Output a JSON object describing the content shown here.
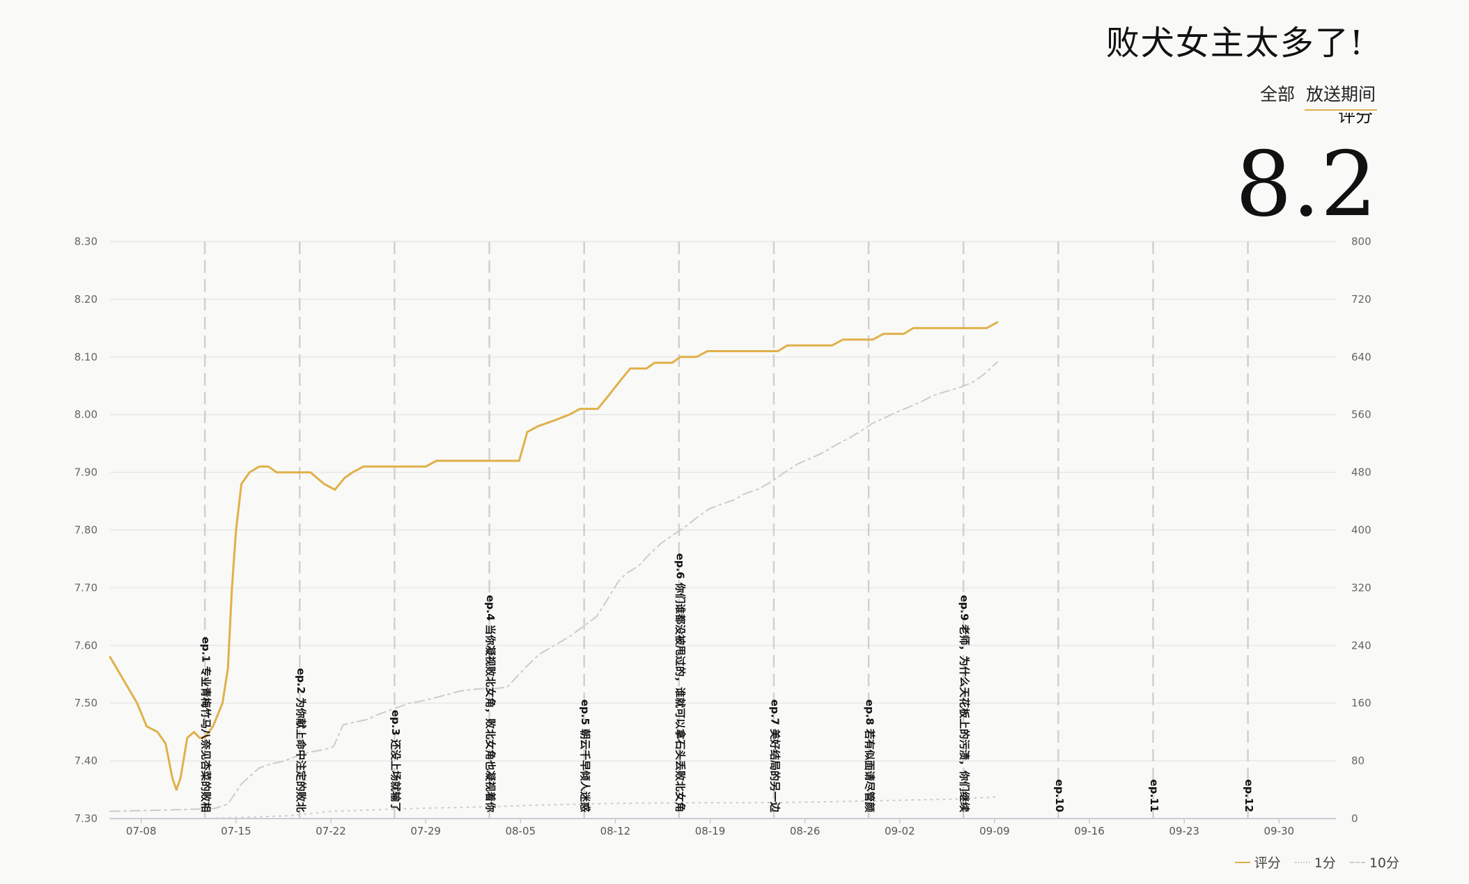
{
  "title": "败犬女主太多了!",
  "tabs": [
    {
      "label": "全部",
      "active": false
    },
    {
      "label": "放送期间",
      "active": true
    }
  ],
  "score": {
    "label": "评分",
    "value": "8.2"
  },
  "legend": [
    {
      "label": "评分",
      "color": "#e0b04a",
      "style": "solid"
    },
    {
      "label": "1分",
      "color": "#cccccc",
      "style": "dotted"
    },
    {
      "label": "10分",
      "color": "#cccccc",
      "style": "dashdot"
    }
  ],
  "chart_data": {
    "type": "line",
    "x_tick_labels": [
      "07-08",
      "07-15",
      "07-22",
      "07-29",
      "08-05",
      "08-12",
      "08-19",
      "08-26",
      "09-02",
      "09-09",
      "09-16",
      "09-23",
      "09-30"
    ],
    "y_left_ticks": [
      "8.30",
      "8.20",
      "8.10",
      "8.00",
      "7.90",
      "7.80",
      "7.70",
      "7.60",
      "7.50",
      "7.40",
      "7.30"
    ],
    "y_right_ticks": [
      "800",
      "720",
      "640",
      "560",
      "480",
      "400",
      "320",
      "240",
      "160",
      "80",
      "0"
    ],
    "y_left_range": [
      7.3,
      8.3
    ],
    "y_right_range": [
      0,
      800
    ],
    "x_range_days": [
      -2.3,
      88.2
    ],
    "grid": true,
    "episodes": [
      {
        "label": "ep.1 专业青梅竹马八奈见杏菜的败相",
        "day": 4.7
      },
      {
        "label": "ep.2 为你献上命中注定的败北",
        "day": 11.7
      },
      {
        "label": "ep.3 还没上场就输了",
        "day": 18.7
      },
      {
        "label": "ep.4 当你凝视败北女角，败北女角也凝视着你",
        "day": 25.7
      },
      {
        "label": "ep.5 朝云千早倾人迷惑",
        "day": 32.7
      },
      {
        "label": "ep.6 你们谁都没被甩过的，谁就可以拿石头丢败北女角",
        "day": 39.7
      },
      {
        "label": "ep.7 美好结局的另一边",
        "day": 46.7
      },
      {
        "label": "ep.8 若有似面请尽管颜",
        "day": 53.7
      },
      {
        "label": "ep.9 老师，为什么天花板上的污渍，你们继续",
        "day": 60.7
      },
      {
        "label": "ep.10",
        "day": 67.7
      },
      {
        "label": "ep.11",
        "day": 74.7
      },
      {
        "label": "ep.12",
        "day": 81.7
      }
    ],
    "series": [
      {
        "name": "评分",
        "axis": "left",
        "color": "#e0b04a",
        "points": [
          [
            -2.3,
            7.58
          ],
          [
            -1.3,
            7.54
          ],
          [
            -0.3,
            7.5
          ],
          [
            0.4,
            7.46
          ],
          [
            1.2,
            7.45
          ],
          [
            1.8,
            7.43
          ],
          [
            2.3,
            7.37
          ],
          [
            2.6,
            7.35
          ],
          [
            2.9,
            7.37
          ],
          [
            3.4,
            7.44
          ],
          [
            3.9,
            7.45
          ],
          [
            4.3,
            7.44
          ],
          [
            4.7,
            7.44
          ],
          [
            5.3,
            7.46
          ],
          [
            6.0,
            7.5
          ],
          [
            6.4,
            7.56
          ],
          [
            6.7,
            7.7
          ],
          [
            7.0,
            7.8
          ],
          [
            7.4,
            7.88
          ],
          [
            8.0,
            7.9
          ],
          [
            8.7,
            7.91
          ],
          [
            9.4,
            7.91
          ],
          [
            10.0,
            7.9
          ],
          [
            11.0,
            7.9
          ],
          [
            12.5,
            7.9
          ],
          [
            13.5,
            7.88
          ],
          [
            14.3,
            7.87
          ],
          [
            15.0,
            7.89
          ],
          [
            15.6,
            7.9
          ],
          [
            16.4,
            7.91
          ],
          [
            17.5,
            7.91
          ],
          [
            19.5,
            7.91
          ],
          [
            21.0,
            7.91
          ],
          [
            21.8,
            7.92
          ],
          [
            23.0,
            7.92
          ],
          [
            26.9,
            7.92
          ],
          [
            27.9,
            7.92
          ],
          [
            28.5,
            7.97
          ],
          [
            29.3,
            7.98
          ],
          [
            30.5,
            7.99
          ],
          [
            31.6,
            8.0
          ],
          [
            32.4,
            8.01
          ],
          [
            33.7,
            8.01
          ],
          [
            34.4,
            8.03
          ],
          [
            35.4,
            8.06
          ],
          [
            36.1,
            8.08
          ],
          [
            37.3,
            8.08
          ],
          [
            37.9,
            8.09
          ],
          [
            39.2,
            8.09
          ],
          [
            39.8,
            8.1
          ],
          [
            41.0,
            8.1
          ],
          [
            41.8,
            8.11
          ],
          [
            44.0,
            8.11
          ],
          [
            47.0,
            8.11
          ],
          [
            47.7,
            8.12
          ],
          [
            51.0,
            8.12
          ],
          [
            51.8,
            8.13
          ],
          [
            54.0,
            8.13
          ],
          [
            54.8,
            8.14
          ],
          [
            56.3,
            8.14
          ],
          [
            57.0,
            8.15
          ],
          [
            59.0,
            8.15
          ],
          [
            61.5,
            8.15
          ],
          [
            62.4,
            8.15
          ],
          [
            63.2,
            8.16
          ]
        ]
      },
      {
        "name": "1分",
        "axis": "right",
        "color": "#cccccc",
        "points": [
          [
            -2.3,
            0
          ],
          [
            4.7,
            0
          ],
          [
            8.0,
            2
          ],
          [
            11.0,
            4
          ],
          [
            14.0,
            10
          ],
          [
            17.0,
            12
          ],
          [
            20.0,
            14
          ],
          [
            25.0,
            16
          ],
          [
            30.0,
            19
          ],
          [
            35.0,
            21
          ],
          [
            40.0,
            22
          ],
          [
            45.0,
            22
          ],
          [
            50.0,
            23
          ],
          [
            55.0,
            25
          ],
          [
            60.0,
            27
          ],
          [
            63.2,
            30
          ]
        ]
      },
      {
        "name": "10分",
        "axis": "right",
        "color": "#cccccc",
        "points": [
          [
            -2.3,
            10
          ],
          [
            2.0,
            12
          ],
          [
            4.0,
            13
          ],
          [
            5.4,
            14
          ],
          [
            6.4,
            20
          ],
          [
            7.4,
            48
          ],
          [
            8.7,
            70
          ],
          [
            9.6,
            76
          ],
          [
            10.4,
            79
          ],
          [
            11.4,
            86
          ],
          [
            12.4,
            92
          ],
          [
            13.6,
            96
          ],
          [
            14.2,
            100
          ],
          [
            14.9,
            130
          ],
          [
            15.4,
            132
          ],
          [
            16.6,
            137
          ],
          [
            17.6,
            145
          ],
          [
            18.6,
            152
          ],
          [
            19.8,
            160
          ],
          [
            20.7,
            163
          ],
          [
            21.6,
            167
          ],
          [
            22.6,
            172
          ],
          [
            23.6,
            177
          ],
          [
            25.0,
            180
          ],
          [
            26.0,
            180
          ],
          [
            27.0,
            182
          ],
          [
            27.6,
            194
          ],
          [
            28.4,
            210
          ],
          [
            29.4,
            228
          ],
          [
            30.5,
            240
          ],
          [
            31.6,
            252
          ],
          [
            32.6,
            266
          ],
          [
            33.6,
            280
          ],
          [
            34.2,
            297
          ],
          [
            35.2,
            328
          ],
          [
            35.8,
            340
          ],
          [
            36.7,
            350
          ],
          [
            37.5,
            366
          ],
          [
            38.4,
            382
          ],
          [
            39.4,
            395
          ],
          [
            40.4,
            408
          ],
          [
            41.2,
            420
          ],
          [
            42.0,
            430
          ],
          [
            43.0,
            437
          ],
          [
            43.8,
            442
          ],
          [
            44.5,
            450
          ],
          [
            45.6,
            457
          ],
          [
            46.6,
            468
          ],
          [
            47.5,
            480
          ],
          [
            48.5,
            492
          ],
          [
            49.5,
            500
          ],
          [
            50.4,
            508
          ],
          [
            51.3,
            518
          ],
          [
            52.3,
            528
          ],
          [
            53.2,
            538
          ],
          [
            54.0,
            548
          ],
          [
            54.8,
            555
          ],
          [
            55.6,
            562
          ],
          [
            56.6,
            570
          ],
          [
            57.6,
            578
          ],
          [
            58.4,
            586
          ],
          [
            59.4,
            592
          ],
          [
            60.5,
            598
          ],
          [
            61.5,
            606
          ],
          [
            62.2,
            616
          ],
          [
            62.8,
            626
          ],
          [
            63.2,
            633
          ]
        ]
      }
    ]
  }
}
